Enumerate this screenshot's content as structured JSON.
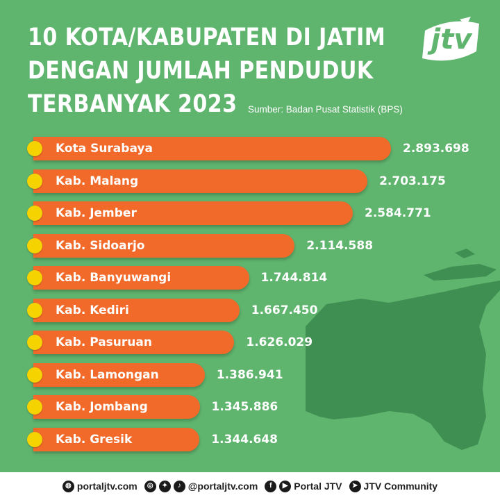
{
  "title_lines": [
    "10 KOTA/KABUPATEN DI JATIM",
    "DENGAN JUMLAH PENDUDUK",
    "TERBANYAK 2023"
  ],
  "source": "Sumber: Badan Pusat Statistik (BPS)",
  "logo": {
    "text": "jtv",
    "icon": "jtv-logo-icon"
  },
  "colors": {
    "background": "#5fb46e",
    "bar": "#f26a2a",
    "dot": "#f5d300",
    "map": "#3f8f52",
    "text": "#ffffff"
  },
  "chart_data": {
    "type": "bar",
    "orientation": "horizontal",
    "categories": [
      "Kota Surabaya",
      "Kab. Malang",
      "Kab. Jember",
      "Kab. Sidoarjo",
      "Kab. Banyuwangi",
      "Kab. Kediri",
      "Kab. Pasuruan",
      "Kab. Lamongan",
      "Kab. Jombang",
      "Kab. Gresik"
    ],
    "values": [
      2893698,
      2703175,
      2584771,
      2114588,
      1744814,
      1667450,
      1626029,
      1386941,
      1345886,
      1344648
    ],
    "value_labels": [
      "2.893.698",
      "2.703.175",
      "2.584.771",
      "2.114.588",
      "1.744.814",
      "1.667.450",
      "1.626.029",
      "1.386.941",
      "1.345.886",
      "1.344.648"
    ],
    "xlim": [
      0,
      2893698
    ],
    "grid": false,
    "legend": "none"
  },
  "footer": {
    "website": "portaljtv.com",
    "social_handle": "@portaljtv.com",
    "page_name": "Portal JTV",
    "community": "JTV Community",
    "icons": [
      "globe-icon",
      "instagram-icon",
      "twitter-icon",
      "tiktok-icon",
      "facebook-icon",
      "youtube-icon",
      "telegram-icon"
    ]
  }
}
